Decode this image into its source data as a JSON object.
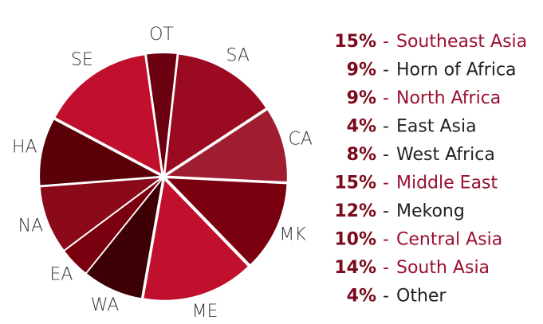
{
  "chart_data": {
    "type": "pie",
    "categories": [
      "OT",
      "SA",
      "CA",
      "MK",
      "ME",
      "WA",
      "EA",
      "NA",
      "HA",
      "SE"
    ],
    "names": [
      "Other",
      "South Asia",
      "Central Asia",
      "Mekong",
      "Middle East",
      "West Africa",
      "East Asia",
      "North Africa",
      "Horn of Africa",
      "Southeast Asia"
    ],
    "values": [
      4,
      14,
      10,
      12,
      15,
      8,
      4,
      9,
      9,
      15
    ],
    "value_labels": [
      "4%",
      "14%",
      "10%",
      "12%",
      "15%",
      "8%",
      "4%",
      "9%",
      "9%",
      "15%"
    ],
    "colors": [
      "#6a0010",
      "#9a0a20",
      "#a01c30",
      "#7a0010",
      "#c0102e",
      "#3d0005",
      "#7a0010",
      "#8b0a1a",
      "#5a0008",
      "#c0102e"
    ],
    "legend_text_colors": [
      "#222222",
      "#9a1030",
      "#9a1030",
      "#222222",
      "#9a1030",
      "#222222",
      "#222222",
      "#9a1030",
      "#222222",
      "#9a1030"
    ],
    "separator": "-"
  }
}
